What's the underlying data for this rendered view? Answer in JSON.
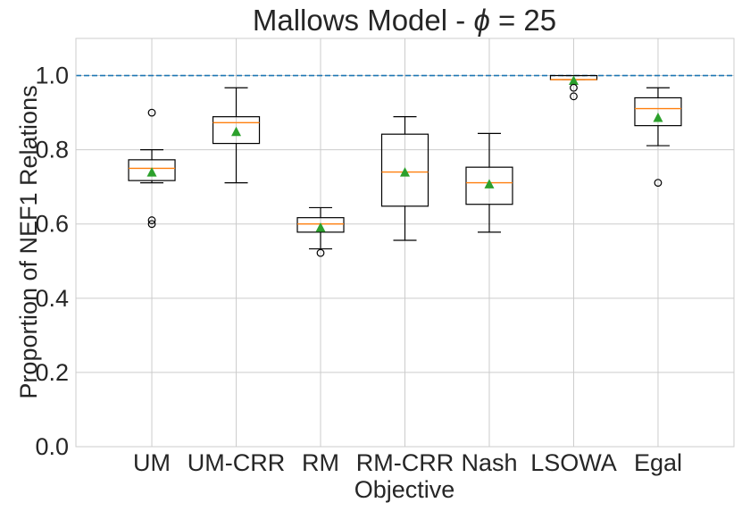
{
  "chart_data": {
    "type": "box",
    "title": "Mallows Model - ",
    "title_symbol": "ϕ",
    "title_suffix": " = 25",
    "xlabel": "Objective",
    "ylabel": "Proportion of NEF1 Relations",
    "ylim": [
      0.0,
      1.1
    ],
    "yticks": [
      "0.0",
      "0.2",
      "0.4",
      "0.6",
      "0.8",
      "1.0"
    ],
    "ytick_values": [
      0.0,
      0.2,
      0.4,
      0.6,
      0.8,
      1.0
    ],
    "grid": true,
    "reference_line": {
      "y": 1.0,
      "style": "dashed",
      "color": "#1f77b4"
    },
    "categories": [
      "UM",
      "UM-CRR",
      "RM",
      "RM-CRR",
      "Nash",
      "LSOWA",
      "Egal"
    ],
    "boxes": [
      {
        "whisker_low": 0.711,
        "q1": 0.717,
        "median": 0.75,
        "q3": 0.773,
        "whisker_high": 0.8,
        "mean": 0.74,
        "outliers": [
          0.9,
          0.61,
          0.6
        ]
      },
      {
        "whisker_low": 0.711,
        "q1": 0.817,
        "median": 0.873,
        "q3": 0.889,
        "whisker_high": 0.967,
        "mean": 0.849,
        "outliers": []
      },
      {
        "whisker_low": 0.533,
        "q1": 0.578,
        "median": 0.6,
        "q3": 0.617,
        "whisker_high": 0.644,
        "mean": 0.591,
        "outliers": [
          0.522
        ]
      },
      {
        "whisker_low": 0.556,
        "q1": 0.648,
        "median": 0.74,
        "q3": 0.842,
        "whisker_high": 0.889,
        "mean": 0.74,
        "outliers": []
      },
      {
        "whisker_low": 0.578,
        "q1": 0.653,
        "median": 0.711,
        "q3": 0.753,
        "whisker_high": 0.844,
        "mean": 0.708,
        "outliers": []
      },
      {
        "whisker_low": 0.989,
        "q1": 0.989,
        "median": 0.989,
        "q3": 1.0,
        "whisker_high": 1.0,
        "mean": 0.987,
        "outliers": [
          0.967,
          0.944
        ]
      },
      {
        "whisker_low": 0.811,
        "q1": 0.865,
        "median": 0.911,
        "q3": 0.94,
        "whisker_high": 0.967,
        "mean": 0.887,
        "outliers": [
          0.711
        ]
      }
    ],
    "colors": {
      "box": "#000000",
      "median": "#ff7f0e",
      "mean": "#2ca02c",
      "grid": "#cccccc",
      "reference": "#1f77b4",
      "spine": "#cccccc"
    }
  }
}
